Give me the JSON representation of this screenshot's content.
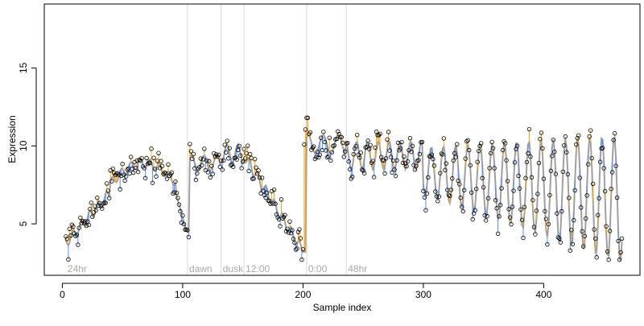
{
  "chart_data": {
    "type": "scatter",
    "title": "",
    "xlabel": "Sample index",
    "ylabel": "Expression",
    "xlim": [
      -15,
      480
    ],
    "ylim": [
      1.7,
      19.1
    ],
    "x_ticks": [
      0,
      100,
      200,
      300,
      400
    ],
    "y_ticks": [
      5,
      10,
      15
    ],
    "grid": false,
    "legend": "none",
    "colors": {
      "fit_line": "#a0a0a0",
      "residual_above": "#f5a623",
      "residual_below": "#5b8def",
      "marker_edge": "#000000",
      "vline": "#d9d9d9",
      "annotation": "#a8a8a8"
    },
    "annotations": [
      {
        "x": 3,
        "label": "24hr",
        "line": false
      },
      {
        "x": 104,
        "label": "dawn",
        "line": true
      },
      {
        "x": 132,
        "label": "dusk",
        "line": true
      },
      {
        "x": 151,
        "label": "12:00",
        "line": true
      },
      {
        "x": 203,
        "label": "0:00",
        "line": true
      },
      {
        "x": 236,
        "label": "48hr",
        "line": true
      }
    ],
    "series": [
      {
        "name": "",
        "role": "observed",
        "x": [],
        "y": []
      },
      {
        "name": "",
        "role": "fitted",
        "x": [],
        "y": []
      }
    ]
  }
}
